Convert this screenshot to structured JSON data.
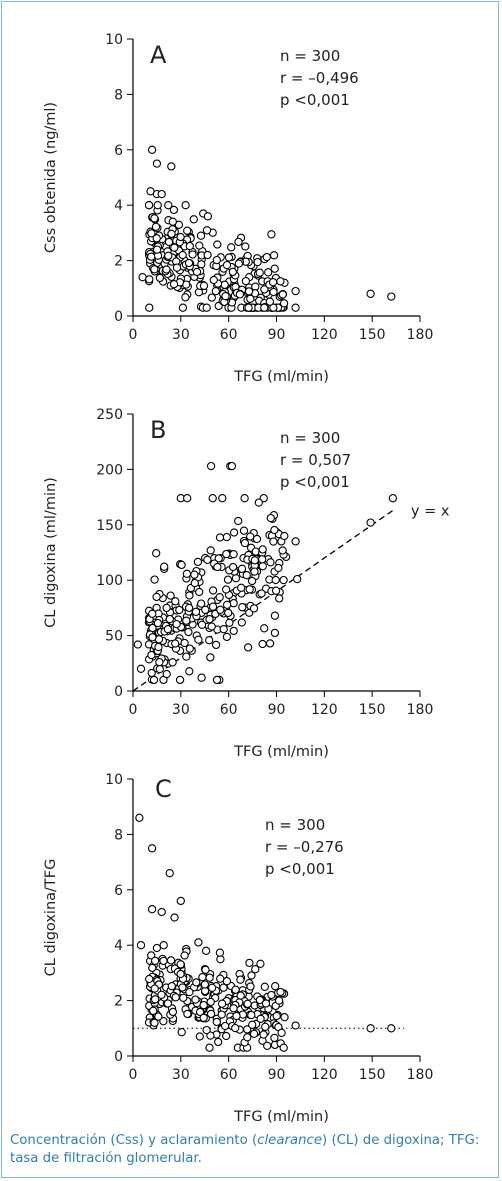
{
  "caption": {
    "prefix": "Concentración (Css) y aclaramiento (",
    "italic": "clearance",
    "suffix": ") (CL) de digoxina; TFG: tasa de filtración glomerular."
  },
  "colors": {
    "frame": "#7fb8d6",
    "caption": "#2f7fb3",
    "axis": "#000000",
    "marker_fill": "#ffffff"
  },
  "chart_data": [
    {
      "panel": "A",
      "type": "scatter",
      "xlabel": "TFG (ml/min)",
      "ylabel": "Css obtenida (ng/ml)",
      "xlim": [
        0,
        180
      ],
      "ylim": [
        0,
        10
      ],
      "xticks": [
        "0",
        "30",
        "60",
        "90",
        "120",
        "150",
        "180"
      ],
      "yticks": [
        "0",
        "2",
        "4",
        "6",
        "8",
        "10"
      ],
      "stats": [
        "n = 300",
        "r = –0,496",
        "p <0,001"
      ],
      "n_points": 300,
      "notable_points": [
        [
          12,
          6.0
        ],
        [
          15,
          5.5
        ],
        [
          24,
          5.4
        ],
        [
          11,
          4.5
        ],
        [
          15,
          4.4
        ],
        [
          18,
          4.4
        ],
        [
          33,
          4.0
        ],
        [
          44,
          3.7
        ],
        [
          47,
          3.6
        ],
        [
          6,
          1.4
        ],
        [
          95,
          1.2
        ],
        [
          102,
          0.9
        ],
        [
          102,
          0.3
        ],
        [
          149,
          0.8
        ],
        [
          162,
          0.7
        ]
      ],
      "cluster": {
        "x_range": [
          10,
          100
        ],
        "y_center": 1.4
      }
    },
    {
      "panel": "B",
      "type": "scatter",
      "xlabel": "TFG (ml/min)",
      "ylabel": "CL digoxina (ml/min)",
      "xlim": [
        0,
        180
      ],
      "ylim": [
        0,
        250
      ],
      "xticks": [
        "0",
        "30",
        "60",
        "90",
        "120",
        "150",
        "180"
      ],
      "yticks": [
        "0",
        "50",
        "100",
        "150",
        "200",
        "250"
      ],
      "stats": [
        "n = 300",
        "r = 0,507",
        "p <0,001"
      ],
      "reference_line": {
        "label": "y = x",
        "slope": 1,
        "intercept": 0
      },
      "n_points": 300,
      "notable_points": [
        [
          49,
          203
        ],
        [
          61,
          203
        ],
        [
          62,
          203
        ],
        [
          30,
          174
        ],
        [
          34,
          174
        ],
        [
          50,
          174
        ],
        [
          56,
          174
        ],
        [
          70,
          174
        ],
        [
          82,
          174
        ],
        [
          163,
          174
        ],
        [
          149,
          152
        ],
        [
          93,
          135
        ],
        [
          102,
          135
        ],
        [
          96,
          121
        ],
        [
          103,
          101
        ],
        [
          89,
          68
        ],
        [
          86,
          43
        ],
        [
          43,
          12
        ],
        [
          3,
          42
        ],
        [
          5,
          20
        ],
        [
          10,
          62
        ]
      ],
      "cluster": {
        "x_range": [
          5,
          100
        ],
        "y_center": 80
      }
    },
    {
      "panel": "C",
      "type": "scatter",
      "xlabel": "TFG (ml/min)",
      "ylabel": "CL digoxina/TFG",
      "xlim": [
        0,
        180
      ],
      "ylim": [
        0,
        10
      ],
      "xticks": [
        "0",
        "30",
        "60",
        "90",
        "120",
        "150",
        "180"
      ],
      "yticks": [
        "0",
        "2",
        "4",
        "6",
        "8",
        "10"
      ],
      "stats": [
        "n = 300",
        "r = –0,276",
        "p <0,001"
      ],
      "reference_line": {
        "style": "dotted",
        "y": 1
      },
      "n_points": 300,
      "notable_points": [
        [
          4,
          8.6
        ],
        [
          12,
          7.5
        ],
        [
          23,
          6.6
        ],
        [
          12,
          5.3
        ],
        [
          18,
          5.2
        ],
        [
          26,
          5.0
        ],
        [
          30,
          5.6
        ],
        [
          5,
          4.0
        ],
        [
          15,
          3.9
        ],
        [
          41,
          4.1
        ],
        [
          89,
          0.4
        ],
        [
          95,
          1.4
        ],
        [
          102,
          1.1
        ],
        [
          149,
          1.0
        ],
        [
          162,
          1.0
        ],
        [
          48,
          0.3
        ]
      ],
      "cluster": {
        "x_range": [
          5,
          100
        ],
        "y_center": 1.9
      }
    }
  ]
}
